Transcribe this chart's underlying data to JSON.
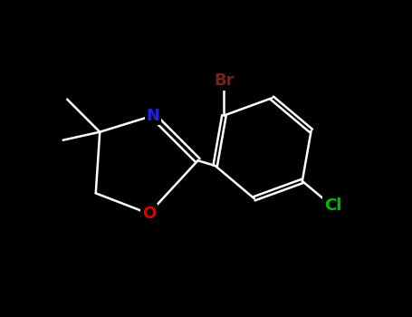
{
  "background_color": "#000000",
  "bond_color": "#ffffff",
  "figsize": [
    4.55,
    3.5
  ],
  "dpi": 100,
  "N_label": {
    "text": "N",
    "color": "#2222dd",
    "fontsize": 13,
    "fontweight": "bold"
  },
  "O_label": {
    "text": "O",
    "color": "#dd0000",
    "fontsize": 13,
    "fontweight": "bold"
  },
  "Br_label": {
    "text": "Br",
    "color": "#7b2020",
    "fontsize": 13,
    "fontweight": "bold"
  },
  "Cl_label": {
    "text": "Cl",
    "color": "#00bb00",
    "fontsize": 13,
    "fontweight": "bold"
  },
  "lw": 1.8,
  "xlim": [
    0,
    10
  ],
  "ylim": [
    0,
    7.7
  ]
}
